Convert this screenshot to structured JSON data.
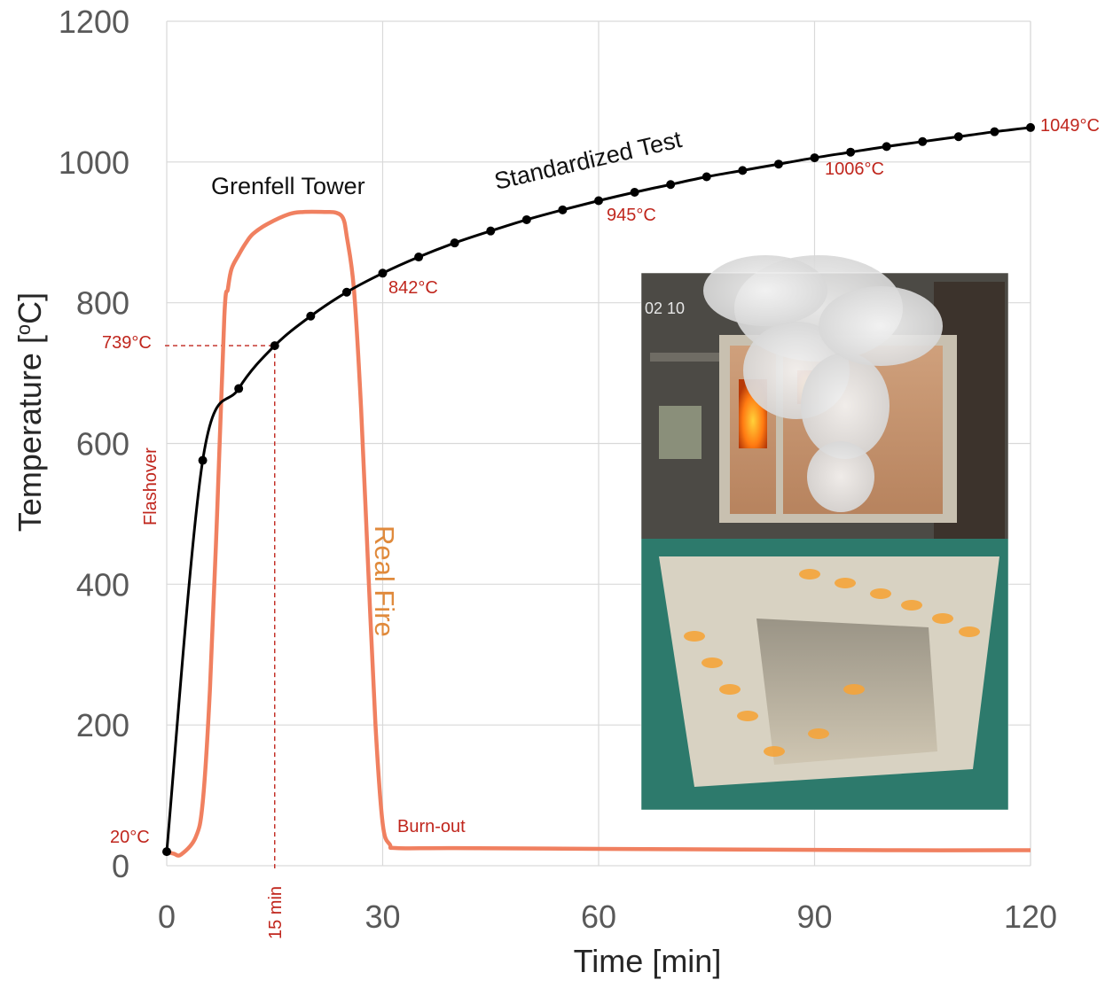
{
  "chart_data": {
    "type": "line",
    "xlabel": "Time [min]",
    "ylabel": "Temperature [°C]",
    "ylabel_parts": {
      "main": "Temperature [",
      "sup": "o",
      "end": "C]"
    },
    "xlim": [
      0,
      120
    ],
    "ylim": [
      0,
      1200
    ],
    "x_ticks": [
      0,
      30,
      60,
      90,
      120
    ],
    "y_ticks": [
      0,
      200,
      400,
      600,
      800,
      1000,
      1200
    ],
    "grid": true,
    "series": [
      {
        "name": "Standardized Test",
        "color": "#000000",
        "markers": true,
        "x": [
          0,
          5,
          10,
          15,
          20,
          25,
          30,
          35,
          40,
          45,
          50,
          55,
          60,
          65,
          70,
          75,
          80,
          85,
          90,
          95,
          100,
          105,
          110,
          115,
          120
        ],
        "y": [
          20,
          576,
          678,
          739,
          781,
          815,
          842,
          865,
          885,
          902,
          918,
          932,
          945,
          957,
          968,
          979,
          988,
          997,
          1006,
          1014,
          1022,
          1029,
          1036,
          1043,
          1049
        ]
      },
      {
        "name": "Real Fire",
        "color": "#f08060",
        "markers": false,
        "x": [
          0,
          1,
          2,
          4,
          5,
          6,
          7,
          8,
          8.5,
          9,
          10,
          11,
          12,
          14,
          17,
          19,
          22,
          23.5,
          24.5,
          25,
          26,
          27,
          28,
          29,
          30,
          31,
          32,
          40,
          60,
          80,
          100,
          120
        ],
        "y": [
          20,
          17,
          16,
          40,
          90,
          250,
          500,
          780,
          820,
          848,
          868,
          885,
          898,
          912,
          926,
          929,
          929,
          928,
          920,
          895,
          820,
          650,
          420,
          200,
          60,
          30,
          25,
          25,
          24,
          23,
          22,
          22
        ]
      }
    ],
    "annotations": {
      "label_1049": "1049°C",
      "label_1006": "1006°C",
      "label_945": "945°C",
      "label_842": "842°C",
      "label_739": "739°C",
      "label_20": "20°C",
      "label_15min": "15 min",
      "label_flashover": "Flashover",
      "label_burnout": "Burn-out",
      "label_standardized": "Standardized Test",
      "label_grenfell": "Grenfell Tower",
      "label_realfire": "Real Fire",
      "guide_time_min": 15,
      "guide_temp_c": 739
    }
  },
  "inset_photo": {
    "description_icon": "fire-test-furnace-photo",
    "overlay_text": "02 10"
  },
  "colors": {
    "grid": "#d9d9d9",
    "standard_line": "#000000",
    "real_fire": "#f08060",
    "annotation_red": "#c0261d",
    "real_fire_label": "#e08a3c"
  }
}
